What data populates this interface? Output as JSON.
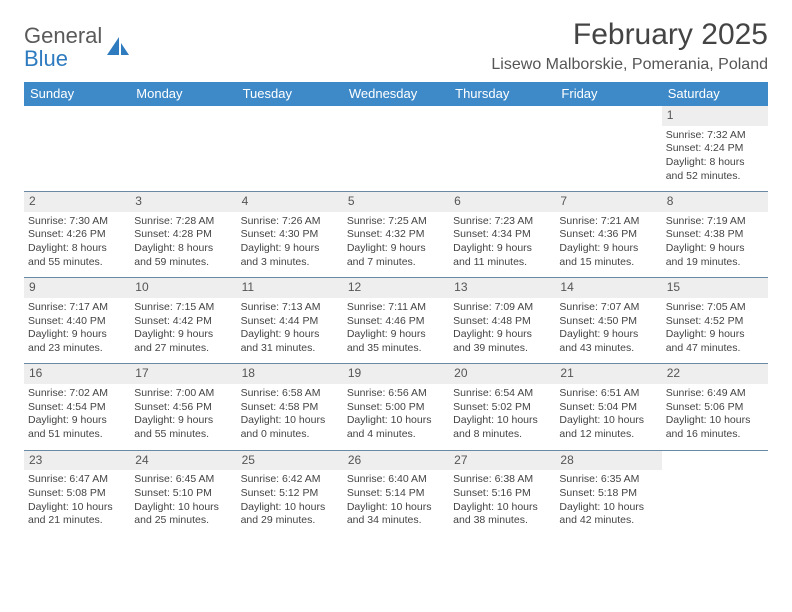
{
  "logo": {
    "line1": "General",
    "line2": "Blue",
    "shape_color": "#2f7bbf"
  },
  "header": {
    "title": "February 2025",
    "location": "Lisewo Malborskie, Pomerania, Poland"
  },
  "colors": {
    "header_bar": "#3e8ac8",
    "daynum_bg": "#eeeeee",
    "week_border": "#6a8aa3",
    "text": "#444444"
  },
  "weekdays": [
    "Sunday",
    "Monday",
    "Tuesday",
    "Wednesday",
    "Thursday",
    "Friday",
    "Saturday"
  ],
  "weeks": [
    [
      null,
      null,
      null,
      null,
      null,
      null,
      {
        "day": "1",
        "sunrise": "Sunrise: 7:32 AM",
        "sunset": "Sunset: 4:24 PM",
        "daylight1": "Daylight: 8 hours",
        "daylight2": "and 52 minutes."
      }
    ],
    [
      {
        "day": "2",
        "sunrise": "Sunrise: 7:30 AM",
        "sunset": "Sunset: 4:26 PM",
        "daylight1": "Daylight: 8 hours",
        "daylight2": "and 55 minutes."
      },
      {
        "day": "3",
        "sunrise": "Sunrise: 7:28 AM",
        "sunset": "Sunset: 4:28 PM",
        "daylight1": "Daylight: 8 hours",
        "daylight2": "and 59 minutes."
      },
      {
        "day": "4",
        "sunrise": "Sunrise: 7:26 AM",
        "sunset": "Sunset: 4:30 PM",
        "daylight1": "Daylight: 9 hours",
        "daylight2": "and 3 minutes."
      },
      {
        "day": "5",
        "sunrise": "Sunrise: 7:25 AM",
        "sunset": "Sunset: 4:32 PM",
        "daylight1": "Daylight: 9 hours",
        "daylight2": "and 7 minutes."
      },
      {
        "day": "6",
        "sunrise": "Sunrise: 7:23 AM",
        "sunset": "Sunset: 4:34 PM",
        "daylight1": "Daylight: 9 hours",
        "daylight2": "and 11 minutes."
      },
      {
        "day": "7",
        "sunrise": "Sunrise: 7:21 AM",
        "sunset": "Sunset: 4:36 PM",
        "daylight1": "Daylight: 9 hours",
        "daylight2": "and 15 minutes."
      },
      {
        "day": "8",
        "sunrise": "Sunrise: 7:19 AM",
        "sunset": "Sunset: 4:38 PM",
        "daylight1": "Daylight: 9 hours",
        "daylight2": "and 19 minutes."
      }
    ],
    [
      {
        "day": "9",
        "sunrise": "Sunrise: 7:17 AM",
        "sunset": "Sunset: 4:40 PM",
        "daylight1": "Daylight: 9 hours",
        "daylight2": "and 23 minutes."
      },
      {
        "day": "10",
        "sunrise": "Sunrise: 7:15 AM",
        "sunset": "Sunset: 4:42 PM",
        "daylight1": "Daylight: 9 hours",
        "daylight2": "and 27 minutes."
      },
      {
        "day": "11",
        "sunrise": "Sunrise: 7:13 AM",
        "sunset": "Sunset: 4:44 PM",
        "daylight1": "Daylight: 9 hours",
        "daylight2": "and 31 minutes."
      },
      {
        "day": "12",
        "sunrise": "Sunrise: 7:11 AM",
        "sunset": "Sunset: 4:46 PM",
        "daylight1": "Daylight: 9 hours",
        "daylight2": "and 35 minutes."
      },
      {
        "day": "13",
        "sunrise": "Sunrise: 7:09 AM",
        "sunset": "Sunset: 4:48 PM",
        "daylight1": "Daylight: 9 hours",
        "daylight2": "and 39 minutes."
      },
      {
        "day": "14",
        "sunrise": "Sunrise: 7:07 AM",
        "sunset": "Sunset: 4:50 PM",
        "daylight1": "Daylight: 9 hours",
        "daylight2": "and 43 minutes."
      },
      {
        "day": "15",
        "sunrise": "Sunrise: 7:05 AM",
        "sunset": "Sunset: 4:52 PM",
        "daylight1": "Daylight: 9 hours",
        "daylight2": "and 47 minutes."
      }
    ],
    [
      {
        "day": "16",
        "sunrise": "Sunrise: 7:02 AM",
        "sunset": "Sunset: 4:54 PM",
        "daylight1": "Daylight: 9 hours",
        "daylight2": "and 51 minutes."
      },
      {
        "day": "17",
        "sunrise": "Sunrise: 7:00 AM",
        "sunset": "Sunset: 4:56 PM",
        "daylight1": "Daylight: 9 hours",
        "daylight2": "and 55 minutes."
      },
      {
        "day": "18",
        "sunrise": "Sunrise: 6:58 AM",
        "sunset": "Sunset: 4:58 PM",
        "daylight1": "Daylight: 10 hours",
        "daylight2": "and 0 minutes."
      },
      {
        "day": "19",
        "sunrise": "Sunrise: 6:56 AM",
        "sunset": "Sunset: 5:00 PM",
        "daylight1": "Daylight: 10 hours",
        "daylight2": "and 4 minutes."
      },
      {
        "day": "20",
        "sunrise": "Sunrise: 6:54 AM",
        "sunset": "Sunset: 5:02 PM",
        "daylight1": "Daylight: 10 hours",
        "daylight2": "and 8 minutes."
      },
      {
        "day": "21",
        "sunrise": "Sunrise: 6:51 AM",
        "sunset": "Sunset: 5:04 PM",
        "daylight1": "Daylight: 10 hours",
        "daylight2": "and 12 minutes."
      },
      {
        "day": "22",
        "sunrise": "Sunrise: 6:49 AM",
        "sunset": "Sunset: 5:06 PM",
        "daylight1": "Daylight: 10 hours",
        "daylight2": "and 16 minutes."
      }
    ],
    [
      {
        "day": "23",
        "sunrise": "Sunrise: 6:47 AM",
        "sunset": "Sunset: 5:08 PM",
        "daylight1": "Daylight: 10 hours",
        "daylight2": "and 21 minutes."
      },
      {
        "day": "24",
        "sunrise": "Sunrise: 6:45 AM",
        "sunset": "Sunset: 5:10 PM",
        "daylight1": "Daylight: 10 hours",
        "daylight2": "and 25 minutes."
      },
      {
        "day": "25",
        "sunrise": "Sunrise: 6:42 AM",
        "sunset": "Sunset: 5:12 PM",
        "daylight1": "Daylight: 10 hours",
        "daylight2": "and 29 minutes."
      },
      {
        "day": "26",
        "sunrise": "Sunrise: 6:40 AM",
        "sunset": "Sunset: 5:14 PM",
        "daylight1": "Daylight: 10 hours",
        "daylight2": "and 34 minutes."
      },
      {
        "day": "27",
        "sunrise": "Sunrise: 6:38 AM",
        "sunset": "Sunset: 5:16 PM",
        "daylight1": "Daylight: 10 hours",
        "daylight2": "and 38 minutes."
      },
      {
        "day": "28",
        "sunrise": "Sunrise: 6:35 AM",
        "sunset": "Sunset: 5:18 PM",
        "daylight1": "Daylight: 10 hours",
        "daylight2": "and 42 minutes."
      },
      null
    ]
  ]
}
